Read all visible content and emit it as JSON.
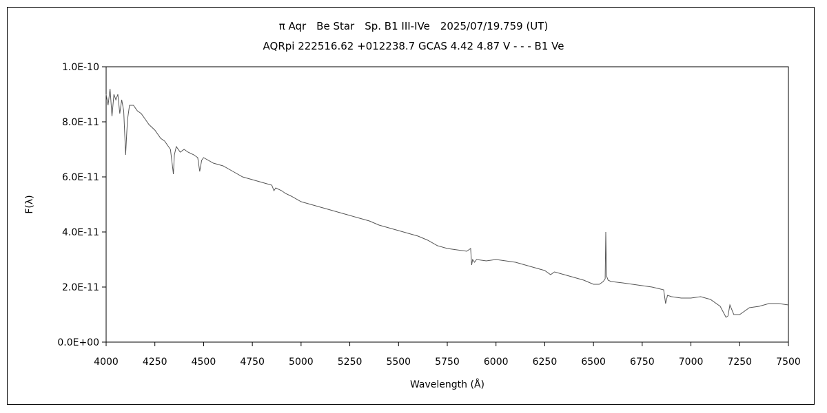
{
  "chart_data": {
    "type": "line",
    "title": "π Aqr　Be Star　Sp. B1 III-IVe　2025/07/19.759 (UT)",
    "subtitle": "AQRpi 222516.62 +012238.7 GCAS 4.42 4.87 V - - - B1 Ve",
    "xlabel": "Wavelength (Å)",
    "ylabel": "F(λ)",
    "xlim": [
      4000,
      7500
    ],
    "ylim": [
      0,
      1e-10
    ],
    "grid": false,
    "x_ticks": [
      "4000",
      "4250",
      "4500",
      "4750",
      "5000",
      "5250",
      "5500",
      "5750",
      "6000",
      "6250",
      "6500",
      "6750",
      "7000",
      "7250",
      "7500"
    ],
    "y_ticks": [
      "0.0E+00",
      "2.0E-11",
      "4.0E-11",
      "6.0E-11",
      "8.0E-11",
      "1.0E-10"
    ],
    "series_color": "#555555",
    "x": [
      4000,
      4010,
      4020,
      4030,
      4040,
      4050,
      4060,
      4070,
      4080,
      4090,
      4100,
      4105,
      4110,
      4120,
      4140,
      4160,
      4180,
      4200,
      4220,
      4250,
      4280,
      4300,
      4330,
      4340,
      4345,
      4350,
      4360,
      4380,
      4400,
      4420,
      4450,
      4470,
      4480,
      4490,
      4500,
      4550,
      4600,
      4650,
      4700,
      4750,
      4800,
      4850,
      4861,
      4870,
      4900,
      4920,
      4950,
      5000,
      5050,
      5100,
      5150,
      5200,
      5250,
      5300,
      5350,
      5400,
      5450,
      5500,
      5550,
      5600,
      5650,
      5700,
      5750,
      5800,
      5850,
      5870,
      5875,
      5880,
      5890,
      5900,
      5950,
      6000,
      6050,
      6100,
      6150,
      6200,
      6250,
      6280,
      6300,
      6350,
      6400,
      6450,
      6500,
      6530,
      6550,
      6560,
      6563,
      6567,
      6575,
      6590,
      6650,
      6700,
      6750,
      6800,
      6860,
      6870,
      6880,
      6900,
      6950,
      7000,
      7050,
      7100,
      7150,
      7180,
      7190,
      7200,
      7220,
      7250,
      7280,
      7300,
      7350,
      7400,
      7450,
      7500
    ],
    "y": [
      9e-11,
      8.6e-11,
      9.2e-11,
      8.2e-11,
      9e-11,
      8.8e-11,
      9e-11,
      8.3e-11,
      8.8e-11,
      8.4e-11,
      6.8e-11,
      7.5e-11,
      8.1e-11,
      8.6e-11,
      8.6e-11,
      8.4e-11,
      8.3e-11,
      8.1e-11,
      7.9e-11,
      7.7e-11,
      7.4e-11,
      7.3e-11,
      7e-11,
      6.4e-11,
      6.1e-11,
      6.8e-11,
      7.1e-11,
      6.9e-11,
      7e-11,
      6.9e-11,
      6.8e-11,
      6.7e-11,
      6.2e-11,
      6.6e-11,
      6.7e-11,
      6.5e-11,
      6.4e-11,
      6.2e-11,
      6e-11,
      5.9e-11,
      5.8e-11,
      5.7e-11,
      5.5e-11,
      5.6e-11,
      5.5e-11,
      5.4e-11,
      5.3e-11,
      5.1e-11,
      5e-11,
      4.9e-11,
      4.8e-11,
      4.7e-11,
      4.6e-11,
      4.5e-11,
      4.4e-11,
      4.25e-11,
      4.15e-11,
      4.05e-11,
      3.95e-11,
      3.85e-11,
      3.7e-11,
      3.5e-11,
      3.4e-11,
      3.35e-11,
      3.3e-11,
      3.4e-11,
      2.8e-11,
      3e-11,
      2.9e-11,
      3e-11,
      2.95e-11,
      3e-11,
      2.95e-11,
      2.9e-11,
      2.8e-11,
      2.7e-11,
      2.6e-11,
      2.45e-11,
      2.55e-11,
      2.45e-11,
      2.35e-11,
      2.25e-11,
      2.1e-11,
      2.1e-11,
      2.2e-11,
      2.3e-11,
      4e-11,
      2.4e-11,
      2.25e-11,
      2.2e-11,
      2.15e-11,
      2.1e-11,
      2.05e-11,
      2e-11,
      1.9e-11,
      1.4e-11,
      1.7e-11,
      1.65e-11,
      1.6e-11,
      1.6e-11,
      1.65e-11,
      1.55e-11,
      1.3e-11,
      9e-12,
      9.5e-12,
      1.35e-11,
      1e-11,
      1e-11,
      1.15e-11,
      1.25e-11,
      1.3e-11,
      1.4e-11,
      1.4e-11,
      1.35e-11
    ]
  }
}
